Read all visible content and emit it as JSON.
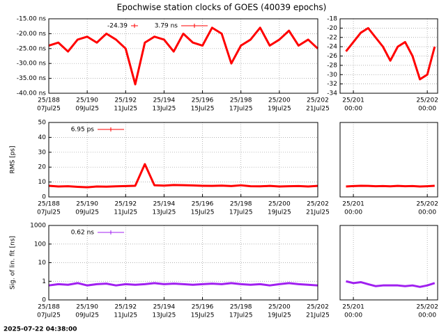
{
  "title": "Epochwise station clocks of GOES (40039 epochs)",
  "timestamp": "2025-07-22 04:38:00",
  "chart_data": [
    {
      "type": "line",
      "legend": [
        "-24.39",
        "3.79 ns"
      ],
      "x": [
        188,
        188.5,
        189,
        189.5,
        190,
        190.5,
        191,
        191.5,
        192,
        192.5,
        193,
        193.5,
        194,
        194.5,
        195,
        195.5,
        196,
        196.5,
        197,
        197.5,
        198,
        198.5,
        199,
        199.5,
        200,
        200.5,
        201,
        201.5,
        202
      ],
      "series": [
        {
          "color": "#ff0000",
          "values": [
            -24,
            -23,
            -26,
            -22,
            -21,
            -23,
            -20,
            -22,
            -25,
            -37,
            -23,
            -21,
            -22,
            -26,
            -20,
            -23,
            -24,
            -18,
            -20,
            -30,
            -24,
            -22,
            -18,
            -24,
            -22,
            -19,
            -24,
            -22,
            -25
          ]
        }
      ],
      "xlim": [
        188,
        202
      ],
      "xticks": [
        {
          "value": 188,
          "label": "25/188"
        },
        {
          "value": 190,
          "label": "25/190"
        },
        {
          "value": 192,
          "label": "25/192"
        },
        {
          "value": 194,
          "label": "25/194"
        },
        {
          "value": 196,
          "label": "25/196"
        },
        {
          "value": 198,
          "label": "25/198"
        },
        {
          "value": 200,
          "label": "25/200"
        },
        {
          "value": 202,
          "label": "25/202"
        }
      ],
      "xtick_dates": [
        "07Jul25",
        "09Jul25",
        "11Jul25",
        "13Jul25",
        "15Jul25",
        "17Jul25",
        "19Jul25",
        "21Jul25"
      ],
      "ylim": [
        -40,
        -15
      ],
      "yticks": [
        {
          "value": -15,
          "label": "-15.00 ns"
        },
        {
          "value": -20,
          "label": "-20.00 ns"
        },
        {
          "value": -25,
          "label": "-25.00 ns"
        },
        {
          "value": -30,
          "label": "-30.00 ns"
        },
        {
          "value": -35,
          "label": "-35.00 ns"
        },
        {
          "value": -40,
          "label": "-40.00 ns"
        }
      ],
      "grid": true
    },
    {
      "type": "line",
      "x": [
        200.9,
        201,
        201.1,
        201.2,
        201.3,
        201.4,
        201.5,
        201.6,
        201.7,
        201.8,
        201.9,
        202,
        202.1
      ],
      "series": [
        {
          "color": "#ff0000",
          "values": [
            -25,
            -23,
            -21,
            -20,
            -22,
            -24,
            -27,
            -24,
            -23,
            -26,
            -31,
            -30,
            -24
          ]
        }
      ],
      "xlim": [
        200.82,
        202.14
      ],
      "xticks": [
        {
          "value": 201,
          "label": "25/201"
        },
        {
          "value": 202,
          "label": "25/202"
        }
      ],
      "xtick_dates": [
        "00:00",
        "00:00"
      ],
      "ylim": [
        -34,
        -18
      ],
      "yticks": [
        -18,
        -20,
        -22,
        -24,
        -26,
        -28,
        -30,
        -32,
        -34
      ],
      "grid": true
    },
    {
      "type": "line",
      "legend": [
        "6.95 ps"
      ],
      "ylabel": "RMS [ps]",
      "x": [
        188,
        188.5,
        189,
        189.5,
        190,
        190.5,
        191,
        191.5,
        192,
        192.5,
        193,
        193.5,
        194,
        194.5,
        195,
        195.5,
        196,
        196.5,
        197,
        197.5,
        198,
        198.5,
        199,
        199.5,
        200,
        200.5,
        201,
        201.5,
        202
      ],
      "series": [
        {
          "color": "#ff0000",
          "values": [
            7.5,
            7,
            7.2,
            6.8,
            6.5,
            7,
            6.9,
            7.1,
            7.3,
            7.5,
            22,
            7.8,
            7.6,
            8,
            7.9,
            7.7,
            7.5,
            7.4,
            7.6,
            7.3,
            7.8,
            7.2,
            7.1,
            7.4,
            7,
            7.2,
            7.3,
            7,
            7.4
          ]
        }
      ],
      "xlim": [
        188,
        202
      ],
      "xticks": [
        {
          "value": 188,
          "label": "25/188"
        },
        {
          "value": 190,
          "label": "25/190"
        },
        {
          "value": 192,
          "label": "25/192"
        },
        {
          "value": 194,
          "label": "25/194"
        },
        {
          "value": 196,
          "label": "25/196"
        },
        {
          "value": 198,
          "label": "25/198"
        },
        {
          "value": 200,
          "label": "25/200"
        },
        {
          "value": 202,
          "label": "25/202"
        }
      ],
      "xtick_dates": [
        "07Jul25",
        "09Jul25",
        "11Jul25",
        "13Jul25",
        "15Jul25",
        "17Jul25",
        "19Jul25",
        "21Jul25"
      ],
      "ylim": [
        0,
        50
      ],
      "yticks": [
        0,
        10,
        20,
        30,
        40,
        50
      ],
      "grid": true
    },
    {
      "type": "line",
      "x": [
        200.9,
        201,
        201.1,
        201.2,
        201.3,
        201.4,
        201.5,
        201.6,
        201.7,
        201.8,
        201.9,
        202,
        202.1
      ],
      "series": [
        {
          "color": "#ff0000",
          "values": [
            7,
            7.3,
            7.5,
            7.4,
            7.2,
            7.3,
            7.1,
            7.4,
            7.2,
            7.3,
            7,
            7.2,
            7.5
          ]
        }
      ],
      "xlim": [
        200.82,
        202.14
      ],
      "xticks": [
        {
          "value": 201,
          "label": "25/201"
        },
        {
          "value": 202,
          "label": "25/202"
        }
      ],
      "xtick_dates": [
        "00:00",
        "00:00"
      ],
      "ylim": [
        0,
        50
      ],
      "grid": true
    },
    {
      "type": "line",
      "legend": [
        "0.62 ns"
      ],
      "ylabel": "Sig. of lin. fit [ns]",
      "log_y": true,
      "x": [
        188,
        188.5,
        189,
        189.5,
        190,
        190.5,
        191,
        191.5,
        192,
        192.5,
        193,
        193.5,
        194,
        194.5,
        195,
        195.5,
        196,
        196.5,
        197,
        197.5,
        198,
        198.5,
        199,
        199.5,
        200,
        200.5,
        201,
        201.5,
        202
      ],
      "series": [
        {
          "color": "#a020f0",
          "values": [
            0.6,
            0.7,
            0.65,
            0.8,
            0.6,
            0.7,
            0.75,
            0.6,
            0.7,
            0.65,
            0.7,
            0.8,
            0.7,
            0.75,
            0.7,
            0.65,
            0.7,
            0.75,
            0.7,
            0.8,
            0.7,
            0.65,
            0.7,
            0.6,
            0.7,
            0.8,
            0.7,
            0.65,
            0.6
          ]
        }
      ],
      "xlim": [
        188,
        202
      ],
      "xticks": [
        {
          "value": 188,
          "label": "25/188"
        },
        {
          "value": 190,
          "label": "25/190"
        },
        {
          "value": 192,
          "label": "25/192"
        },
        {
          "value": 194,
          "label": "25/194"
        },
        {
          "value": 196,
          "label": "25/196"
        },
        {
          "value": 198,
          "label": "25/198"
        },
        {
          "value": 200,
          "label": "25/200"
        },
        {
          "value": 202,
          "label": "25/202"
        }
      ],
      "xtick_dates": [
        "07Jul25",
        "09Jul25",
        "11Jul25",
        "13Jul25",
        "15Jul25",
        "17Jul25",
        "19Jul25",
        "21Jul25"
      ],
      "ylim": [
        0.1,
        1000
      ],
      "yticks": [
        {
          "value": 0.1,
          "label": "0"
        },
        1,
        10,
        100,
        1000
      ],
      "grid": true
    },
    {
      "type": "line",
      "log_y": true,
      "x": [
        200.9,
        201,
        201.1,
        201.2,
        201.3,
        201.4,
        201.5,
        201.6,
        201.7,
        201.8,
        201.9,
        202,
        202.1
      ],
      "series": [
        {
          "color": "#a020f0",
          "values": [
            1,
            0.8,
            0.9,
            0.7,
            0.55,
            0.6,
            0.6,
            0.6,
            0.55,
            0.6,
            0.5,
            0.6,
            0.8
          ]
        }
      ],
      "xlim": [
        200.82,
        202.14
      ],
      "xticks": [
        {
          "value": 201,
          "label": "25/201"
        },
        {
          "value": 202,
          "label": "25/202"
        }
      ],
      "xtick_dates": [
        "00:00",
        "00:00"
      ],
      "ylim": [
        0.1,
        1000
      ],
      "grid": true
    }
  ]
}
